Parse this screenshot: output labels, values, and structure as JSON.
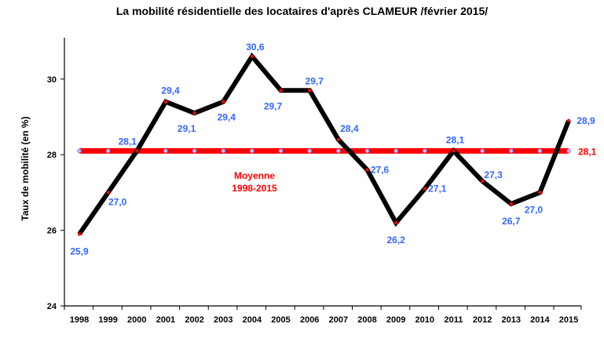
{
  "chart_data": {
    "type": "line",
    "title": "La mobilité résidentielle des locataires d'après CLAMEUR /février 2015/",
    "ylabel": "Taux de mobilité (en %)",
    "xlabel": "",
    "ylim": [
      24,
      31
    ],
    "yticks": [
      24,
      26,
      28,
      30
    ],
    "categories": [
      "1998",
      "1999",
      "2000",
      "2001",
      "2002",
      "2003",
      "2004",
      "2005",
      "2006",
      "2007",
      "2008",
      "2009",
      "2010",
      "2011",
      "2012",
      "2013",
      "2014",
      "2015"
    ],
    "series": [
      {
        "values": [
          25.9,
          27.0,
          28.1,
          29.4,
          29.1,
          29.4,
          30.6,
          29.7,
          29.7,
          28.4,
          27.6,
          26.2,
          27.1,
          28.1,
          27.3,
          26.7,
          27.0,
          28.9
        ],
        "labels": [
          "25,9",
          "27,0",
          "28,1",
          "29,4",
          "29,1",
          "29,4",
          "30,6",
          "29,7",
          "29,7",
          "28,4",
          "27,6",
          "26,2",
          "27,1",
          "28,1",
          "27,3",
          "26,7",
          "27,0",
          "28,9"
        ],
        "color": "#000000"
      }
    ],
    "average": {
      "value": 28.1,
      "label": "28,1",
      "annotation_line1": "Moyenne",
      "annotation_line2": "1998-2015",
      "color": "#ff0000"
    },
    "grid": false
  }
}
